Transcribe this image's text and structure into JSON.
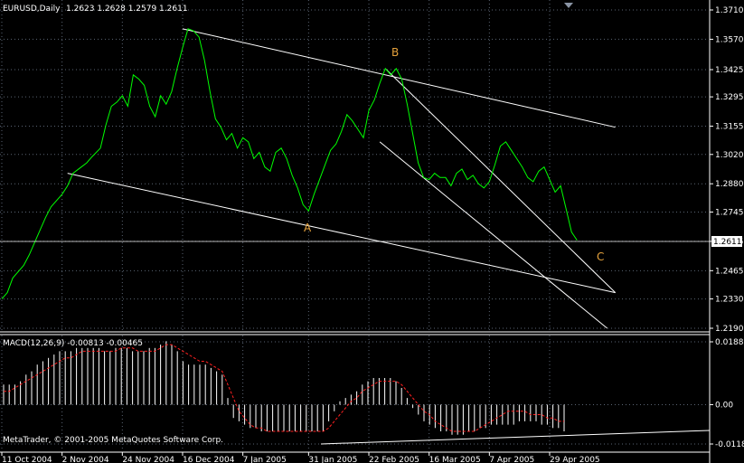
{
  "header": {
    "symbol": "EURUSD,Daily",
    "ohlc": "1.2623 1.2628 1.2579 1.2611"
  },
  "price_axis": {
    "ticks": [
      "1.3710",
      "1.3570",
      "1.3425",
      "1.3295",
      "1.3155",
      "1.3020",
      "1.2880",
      "1.2745",
      "1.2605",
      "1.2465",
      "1.2330",
      "1.2190"
    ],
    "current_price": "1.2611"
  },
  "macd_panel": {
    "label": "MACD(12,26,9) -0.00813 -0.00465",
    "ticks": [
      "0.01883",
      "0.00",
      "-0.0118"
    ],
    "copyright": "MetaTrader, © 2001-2005 MetaQuotes Software Corp."
  },
  "time_axis": {
    "labels": [
      "11 Oct 2004",
      "2 Nov 2004",
      "24 Nov 2004",
      "16 Dec 2004",
      "7 Jan 2005",
      "31 Jan 2005",
      "22 Feb 2005",
      "16 Mar 2005",
      "7 Apr 2005",
      "29 Apr 2005"
    ]
  },
  "wave_labels": {
    "a": "A",
    "b": "B",
    "c": "C"
  },
  "colors": {
    "background": "#000000",
    "grid": "#5a6473",
    "price_line": "#00ff00",
    "signal_line": "#ff2020",
    "trendline": "#ffffff",
    "wave_label": "#e6a23c"
  },
  "chart_data": [
    {
      "type": "line",
      "series": [
        {
          "name": "EURUSD",
          "points": [
            [
              "11 Oct 2004",
              1.233
            ],
            [
              "13 Oct 2004",
              1.236
            ],
            [
              "15 Oct 2004",
              1.243
            ],
            [
              "19 Oct 2004",
              1.249
            ],
            [
              "21 Oct 2004",
              1.254
            ],
            [
              "25 Oct 2004",
              1.266
            ],
            [
              "27 Oct 2004",
              1.272
            ],
            [
              "29 Oct 2004",
              1.277
            ],
            [
              "2 Nov 2004",
              1.283
            ],
            [
              "4 Nov 2004",
              1.287
            ],
            [
              "6 Nov 2004",
              1.293
            ],
            [
              "9 Nov 2004",
              1.296
            ],
            [
              "11 Nov 2004",
              1.298
            ],
            [
              "13 Nov 2004",
              1.301
            ],
            [
              "16 Nov 2004",
              1.305
            ],
            [
              "18 Nov 2004",
              1.316
            ],
            [
              "20 Nov 2004",
              1.325
            ],
            [
              "22 Nov 2004",
              1.327
            ],
            [
              "24 Nov 2004",
              1.33
            ],
            [
              "26 Nov 2004",
              1.325
            ],
            [
              "28 Nov 2004",
              1.34
            ],
            [
              "30 Nov 2004",
              1.338
            ],
            [
              "2 Dec 2004",
              1.335
            ],
            [
              "4 Dec 2004",
              1.325
            ],
            [
              "6 Dec 2004",
              1.32
            ],
            [
              "8 Dec 2004",
              1.33
            ],
            [
              "10 Dec 2004",
              1.326
            ],
            [
              "12 Dec 2004",
              1.332
            ],
            [
              "14 Dec 2004",
              1.343
            ],
            [
              "16 Dec 2004",
              1.353
            ],
            [
              "18 Dec 2004",
              1.362
            ],
            [
              "20 Dec 2004",
              1.361
            ],
            [
              "22 Dec 2004",
              1.358
            ],
            [
              "24 Dec 2004",
              1.347
            ],
            [
              "26 Dec 2004",
              1.332
            ],
            [
              "28 Dec 2004",
              1.319
            ],
            [
              "30 Dec 2004",
              1.315
            ],
            [
              "1 Jan 2005",
              1.309
            ],
            [
              "3 Jan 2005",
              1.312
            ],
            [
              "5 Jan 2005",
              1.305
            ],
            [
              "7 Jan 2005",
              1.31
            ],
            [
              "9 Jan 2005",
              1.308
            ],
            [
              "11 Jan 2005",
              1.3
            ],
            [
              "13 Jan 2005",
              1.303
            ],
            [
              "15 Jan 2005",
              1.296
            ],
            [
              "17 Jan 2005",
              1.294
            ],
            [
              "19 Jan 2005",
              1.303
            ],
            [
              "21 Jan 2005",
              1.305
            ],
            [
              "23 Jan 2005",
              1.3
            ],
            [
              "25 Jan 2005",
              1.292
            ],
            [
              "27 Jan 2005",
              1.286
            ],
            [
              "29 Jan 2005",
              1.278
            ],
            [
              "31 Jan 2005",
              1.275
            ],
            [
              "2 Feb 2005",
              1.283
            ],
            [
              "4 Feb 2005",
              1.29
            ],
            [
              "6 Feb 2005",
              1.297
            ],
            [
              "8 Feb 2005",
              1.304
            ],
            [
              "10 Feb 2005",
              1.307
            ],
            [
              "12 Feb 2005",
              1.313
            ],
            [
              "14 Feb 2005",
              1.321
            ],
            [
              "16 Feb 2005",
              1.318
            ],
            [
              "18 Feb 2005",
              1.314
            ],
            [
              "20 Feb 2005",
              1.31
            ],
            [
              "22 Feb 2005",
              1.323
            ],
            [
              "24 Feb 2005",
              1.328
            ],
            [
              "26 Feb 2005",
              1.336
            ],
            [
              "28 Feb 2005",
              1.343
            ],
            [
              "2 Mar 2005",
              1.34
            ],
            [
              "4 Mar 2005",
              1.343
            ],
            [
              "6 Mar 2005",
              1.338
            ],
            [
              "8 Mar 2005",
              1.326
            ],
            [
              "10 Mar 2005",
              1.312
            ],
            [
              "12 Mar 2005",
              1.298
            ],
            [
              "14 Mar 2005",
              1.291
            ],
            [
              "16 Mar 2005",
              1.29
            ],
            [
              "18 Mar 2005",
              1.293
            ],
            [
              "20 Mar 2005",
              1.291
            ],
            [
              "22 Mar 2005",
              1.291
            ],
            [
              "24 Mar 2005",
              1.287
            ],
            [
              "26 Mar 2005",
              1.293
            ],
            [
              "28 Mar 2005",
              1.295
            ],
            [
              "30 Mar 2005",
              1.29
            ],
            [
              "1 Apr 2005",
              1.292
            ],
            [
              "3 Apr 2005",
              1.288
            ],
            [
              "5 Apr 2005",
              1.286
            ],
            [
              "7 Apr 2005",
              1.289
            ],
            [
              "9 Apr 2005",
              1.297
            ],
            [
              "11 Apr 2005",
              1.306
            ],
            [
              "13 Apr 2005",
              1.308
            ],
            [
              "15 Apr 2005",
              1.304
            ],
            [
              "17 Apr 2005",
              1.3
            ],
            [
              "19 Apr 2005",
              1.296
            ],
            [
              "21 Apr 2005",
              1.291
            ],
            [
              "23 Apr 2005",
              1.289
            ],
            [
              "25 Apr 2005",
              1.294
            ],
            [
              "27 Apr 2005",
              1.296
            ],
            [
              "29 Apr 2005",
              1.29
            ],
            [
              "1 May 2005",
              1.284
            ],
            [
              "3 May 2005",
              1.287
            ],
            [
              "5 May 2005",
              1.276
            ],
            [
              "7 May 2005",
              1.265
            ],
            [
              "9 May 2005",
              1.261
            ]
          ]
        },
        {
          "name": "trendlines",
          "segments": [
            [
              [
                "16 Dec 2004",
                1.362
              ],
              [
                "23 May 2005",
                1.315
              ]
            ],
            [
              [
                "4 Nov 2004",
                1.293
              ],
              [
                "23 May 2005",
                1.236
              ]
            ],
            [
              [
                "28 Feb 2005",
                1.343
              ],
              [
                "23 May 2005",
                1.236
              ]
            ],
            [
              [
                "26 Feb 2005",
                1.308
              ],
              [
                "20 May 2005",
                1.219
              ]
            ]
          ]
        }
      ],
      "ylim": [
        1.219,
        1.371
      ],
      "grid": true
    },
    {
      "type": "bar",
      "series": [
        {
          "name": "MACD",
          "values": [
            0.006,
            0.006,
            0.006,
            0.007,
            0.009,
            0.01,
            0.012,
            0.013,
            0.014,
            0.015,
            0.016,
            0.016,
            0.016,
            0.017,
            0.017,
            0.017,
            0.017,
            0.017,
            0.016,
            0.016,
            0.017,
            0.017,
            0.017,
            0.016,
            0.016,
            0.016,
            0.017,
            0.017,
            0.018,
            0.019,
            0.018,
            0.016,
            0.013,
            0.012,
            0.012,
            0.012,
            0.012,
            0.011,
            0.01,
            0.009,
            0.002,
            -0.004,
            -0.005,
            -0.006,
            -0.007,
            -0.007,
            -0.008,
            -0.008,
            -0.008,
            -0.008,
            -0.008,
            -0.008,
            -0.008,
            -0.008,
            -0.008,
            -0.008,
            -0.008,
            -0.008,
            -0.005,
            -0.002,
            0.001,
            0.002,
            0.003,
            0.004,
            0.006,
            0.007,
            0.008,
            0.008,
            0.008,
            0.008,
            0.007,
            0.005,
            0.002,
            -0.001,
            -0.003,
            -0.005,
            -0.006,
            -0.007,
            -0.008,
            -0.008,
            -0.009,
            -0.009,
            -0.009,
            -0.008,
            -0.008,
            -0.007,
            -0.007,
            -0.006,
            -0.006,
            -0.006,
            -0.006,
            -0.006,
            -0.005,
            -0.005,
            -0.005,
            -0.005,
            -0.006,
            -0.006,
            -0.007,
            -0.007,
            -0.008
          ]
        },
        {
          "name": "Signal",
          "values": [
            0.004,
            0.004,
            0.005,
            0.006,
            0.007,
            0.008,
            0.009,
            0.01,
            0.011,
            0.012,
            0.013,
            0.014,
            0.014,
            0.015,
            0.016,
            0.016,
            0.016,
            0.016,
            0.016,
            0.016,
            0.016,
            0.017,
            0.017,
            0.017,
            0.016,
            0.016,
            0.016,
            0.016,
            0.017,
            0.018,
            0.018,
            0.017,
            0.016,
            0.015,
            0.014,
            0.013,
            0.013,
            0.012,
            0.011,
            0.01,
            0.006,
            0.002,
            -0.002,
            -0.004,
            -0.006,
            -0.007,
            -0.007,
            -0.008,
            -0.008,
            -0.008,
            -0.008,
            -0.008,
            -0.008,
            -0.008,
            -0.008,
            -0.008,
            -0.008,
            -0.008,
            -0.007,
            -0.005,
            -0.003,
            -0.001,
            0.001,
            0.002,
            0.004,
            0.005,
            0.006,
            0.007,
            0.007,
            0.007,
            0.007,
            0.006,
            0.004,
            0.002,
            0.0,
            -0.002,
            -0.003,
            -0.005,
            -0.006,
            -0.007,
            -0.008,
            -0.008,
            -0.008,
            -0.008,
            -0.008,
            -0.007,
            -0.006,
            -0.005,
            -0.004,
            -0.003,
            -0.002,
            -0.002,
            -0.002,
            -0.002,
            -0.003,
            -0.003,
            -0.003,
            -0.004,
            -0.004,
            -0.005,
            -0.005
          ]
        }
      ],
      "ylim": [
        -0.0118,
        0.01883
      ],
      "grid": true
    }
  ]
}
